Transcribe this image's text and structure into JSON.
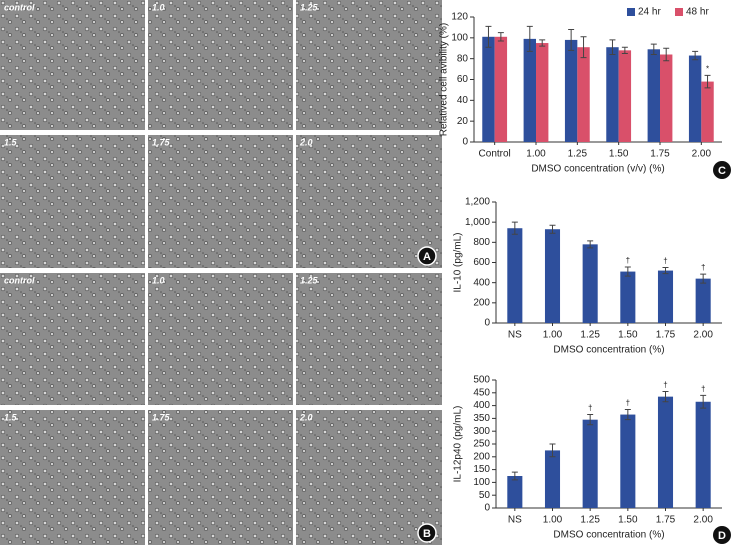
{
  "micrographs": [
    {
      "letter": "A",
      "labels": [
        "control",
        "1.0",
        "1.25",
        "1.5",
        "1.75",
        "2.0"
      ]
    },
    {
      "letter": "B",
      "labels": [
        "control",
        "1.0",
        "1.25",
        "1.5",
        "1.75",
        "2.0"
      ]
    }
  ],
  "chart_data": [
    {
      "type": "bar",
      "panel": "C",
      "y_label": "Relatived cell avibility (%)",
      "x_label": "DMSO concentration (v/v) (%)",
      "categories": [
        "Control",
        "1.00",
        "1.25",
        "1.50",
        "1.75",
        "2.00"
      ],
      "series": [
        {
          "name": "24 hr",
          "color": "#2e4f9c",
          "values": [
            101,
            99,
            98,
            91,
            89,
            83
          ],
          "errors": [
            10,
            12,
            10,
            7,
            5,
            4
          ],
          "markers": [
            null,
            null,
            null,
            null,
            null,
            null
          ]
        },
        {
          "name": "48 hr",
          "color": "#d9506a",
          "values": [
            101,
            95,
            91,
            88,
            84,
            58
          ],
          "errors": [
            4,
            3,
            10,
            3,
            6,
            6
          ],
          "markers": [
            null,
            null,
            null,
            null,
            null,
            "*"
          ]
        }
      ],
      "ylim": [
        0,
        120
      ],
      "yticks": [
        0,
        20,
        40,
        60,
        80,
        100,
        120
      ],
      "legend": "upper right"
    },
    {
      "type": "bar",
      "y_label": "IL-10 (pg/mL)",
      "x_label": "DMSO concentration (%)",
      "categories": [
        "NS",
        "1.00",
        "1.25",
        "1.50",
        "1.75",
        "2.00"
      ],
      "series": [
        {
          "color": "#2e4f9c",
          "values": [
            940,
            930,
            780,
            510,
            520,
            440
          ],
          "errors": [
            60,
            40,
            35,
            45,
            30,
            45
          ],
          "markers": [
            null,
            null,
            null,
            "†",
            "†",
            "†"
          ]
        }
      ],
      "ylim": [
        0,
        1200
      ],
      "yticks": [
        0,
        200,
        400,
        600,
        800,
        {
          "value": 1000,
          "label": "1,000"
        },
        {
          "value": 1200,
          "label": "1,200"
        }
      ]
    },
    {
      "type": "bar",
      "panel": "D",
      "y_label": "IL-12p40 (pg/mL)",
      "x_label": "DMSO concentration (%)",
      "categories": [
        "NS",
        "1.00",
        "1.25",
        "1.50",
        "1.75",
        "2.00"
      ],
      "series": [
        {
          "color": "#2e4f9c",
          "values": [
            125,
            225,
            345,
            365,
            435,
            415
          ],
          "errors": [
            15,
            25,
            20,
            20,
            20,
            25
          ],
          "markers": [
            null,
            null,
            "†",
            "†",
            "†",
            "†"
          ]
        }
      ],
      "ylim": [
        0,
        500
      ],
      "yticks": [
        0,
        50,
        100,
        150,
        200,
        250,
        300,
        350,
        400,
        450,
        500
      ]
    }
  ]
}
